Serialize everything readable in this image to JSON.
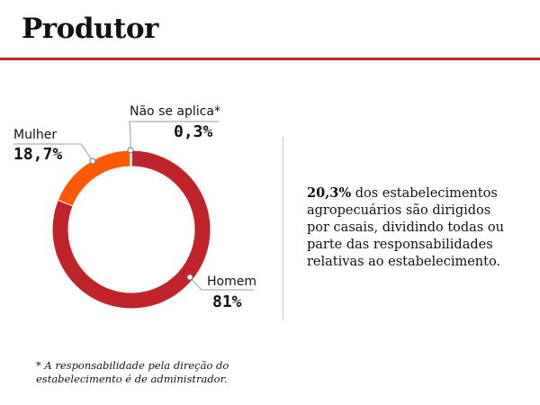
{
  "header": {
    "title": "Produtor"
  },
  "chart_data": {
    "type": "pie",
    "donut": true,
    "slices": [
      {
        "label": "Homem",
        "display": "81%",
        "value": 81.0,
        "color": "#c0242b"
      },
      {
        "label": "Mulher",
        "display": "18,7%",
        "value": 18.7,
        "color": "#ff5a00"
      },
      {
        "label": "Não se aplica*",
        "display": "0,3%",
        "value": 0.3,
        "color": "#d9d9d9"
      }
    ]
  },
  "summary": {
    "highlight": "20,3%",
    "text": " dos estabelecimentos agropecuários são dirigidos por casais, dividindo todas ou parte das responsabilidades relativas ao estabelecimento."
  },
  "footnote": "* A responsabilidade pela direção do estabelecimento é de administrador."
}
